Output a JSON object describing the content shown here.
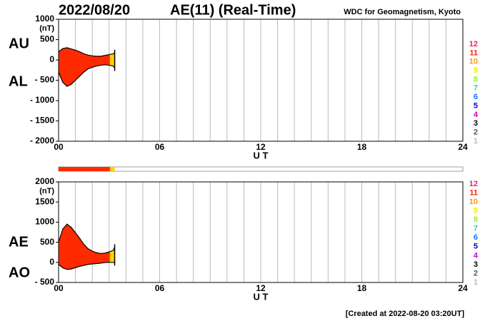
{
  "header": {
    "date": "2022/08/20",
    "title": "AE(11) (Real-Time)",
    "source": "WDC for Geomagnetism, Kyoto",
    "footer": "[Created at 2022-08-20 03:20UT]"
  },
  "station_counts": [
    12,
    11,
    10,
    9,
    8,
    7,
    6,
    5,
    4,
    3,
    2,
    1
  ],
  "station_colors": [
    "#e8207a",
    "#ff2000",
    "#ff9900",
    "#eeee00",
    "#99ee33",
    "#33cccc",
    "#1177ff",
    "#0000cc",
    "#cc00cc",
    "#000000",
    "#555555",
    "#bbbbbb"
  ],
  "station_bar": [
    {
      "start": 0,
      "end": 3.05,
      "color": "#ff2a00"
    },
    {
      "start": 3.05,
      "end": 3.33,
      "color": "#ffd400"
    }
  ],
  "chart_data": [
    {
      "type": "area",
      "unit": "(nT)",
      "xlabel": "U T",
      "xlim": [
        0,
        24
      ],
      "xticks": [
        {
          "value": 0,
          "label": "00"
        },
        {
          "value": 6,
          "label": "06"
        },
        12,
        18,
        24
      ],
      "minor_xticks": [
        1,
        2,
        3,
        4,
        5,
        7,
        8,
        9,
        10,
        11,
        13,
        14,
        15,
        16,
        17,
        19,
        20,
        21,
        22,
        23
      ],
      "ylim": [
        -2000,
        1000
      ],
      "yticks": [
        1000,
        500,
        0,
        {
          "value": -500,
          "label": "- 500"
        },
        {
          "value": -1000,
          "label": "- 1000"
        },
        {
          "value": -1500,
          "label": "- 1500"
        },
        {
          "value": -2000,
          "label": "- 2000"
        }
      ],
      "x": [
        0,
        0.25,
        0.5,
        0.75,
        1,
        1.25,
        1.5,
        1.75,
        2,
        2.25,
        2.5,
        2.75,
        3,
        3.25,
        3.33
      ],
      "series": [
        {
          "name": "AU",
          "color": "#000000",
          "values": [
            200,
            280,
            300,
            270,
            240,
            200,
            150,
            120,
            100,
            90,
            90,
            110,
            130,
            150,
            180
          ]
        },
        {
          "name": "AL",
          "color": "#000000",
          "values": [
            -300,
            -550,
            -650,
            -600,
            -500,
            -400,
            -300,
            -220,
            -180,
            -150,
            -130,
            -120,
            -130,
            -150,
            -200
          ]
        }
      ]
    },
    {
      "type": "area",
      "unit": "(nT)",
      "xlabel": "U T",
      "xlim": [
        0,
        24
      ],
      "xticks": [
        {
          "value": 0,
          "label": "00"
        },
        {
          "value": 6,
          "label": "06"
        },
        12,
        18,
        24
      ],
      "minor_xticks": [
        1,
        2,
        3,
        4,
        5,
        7,
        8,
        9,
        10,
        11,
        13,
        14,
        15,
        16,
        17,
        19,
        20,
        21,
        22,
        23
      ],
      "ylim": [
        -500,
        2000
      ],
      "yticks": [
        2000,
        1500,
        1000,
        500,
        0,
        {
          "value": -500,
          "label": "- 500"
        }
      ],
      "x": [
        0,
        0.25,
        0.5,
        0.75,
        1,
        1.25,
        1.5,
        1.75,
        2,
        2.25,
        2.5,
        2.75,
        3,
        3.25,
        3.33
      ],
      "series": [
        {
          "name": "AE",
          "color": "#000000",
          "values": [
            500,
            830,
            950,
            870,
            740,
            600,
            450,
            340,
            280,
            240,
            220,
            230,
            260,
            300,
            380
          ]
        },
        {
          "name": "AO",
          "color": "#000000",
          "values": [
            -50,
            -135,
            -175,
            -165,
            -130,
            -100,
            -75,
            -50,
            -40,
            -30,
            -20,
            -5,
            0,
            0,
            -10
          ]
        }
      ]
    }
  ]
}
